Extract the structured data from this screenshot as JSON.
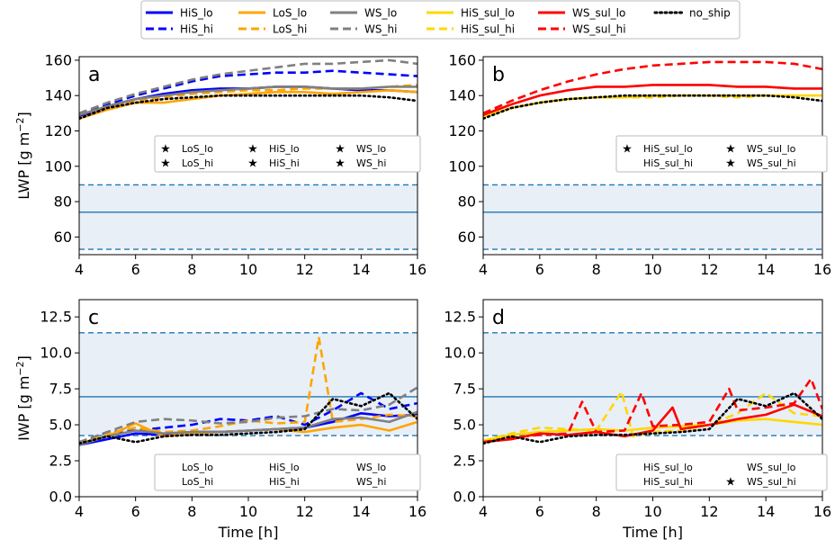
{
  "legend": {
    "entries": [
      {
        "label": "HiS_lo",
        "color": "#0000ff",
        "dash": "solid"
      },
      {
        "label": "HiS_hi",
        "color": "#0000ff",
        "dash": "dashed"
      },
      {
        "label": "LoS_lo",
        "color": "#ffa500",
        "dash": "solid"
      },
      {
        "label": "LoS_hi",
        "color": "#ffa500",
        "dash": "dashed"
      },
      {
        "label": "WS_lo",
        "color": "#808080",
        "dash": "solid"
      },
      {
        "label": "WS_hi",
        "color": "#808080",
        "dash": "dashed"
      },
      {
        "label": "HiS_sul_lo",
        "color": "#ffd700",
        "dash": "solid"
      },
      {
        "label": "HiS_sul_hi",
        "color": "#ffd700",
        "dash": "dashed"
      },
      {
        "label": "WS_sul_lo",
        "color": "#ff0000",
        "dash": "solid"
      },
      {
        "label": "WS_sul_hi",
        "color": "#ff0000",
        "dash": "dashed"
      },
      {
        "label": "no_ship",
        "color": "#000000",
        "dash": "dotted"
      }
    ]
  },
  "reference_color": "#1f77b4",
  "shade_color": "#e8eff7",
  "chart_data": [
    {
      "panel": "a",
      "type": "line",
      "xlabel": "",
      "ylabel": "LWP [g m$^{-2}$]",
      "xlim": [
        4,
        16
      ],
      "ylim": [
        50,
        162
      ],
      "xticks": [
        "4",
        "6",
        "8",
        "10",
        "12",
        "14",
        "16"
      ],
      "yticks": [
        "60",
        "80",
        "100",
        "120",
        "140",
        "160"
      ],
      "ytick_values": [
        60,
        80,
        100,
        120,
        140,
        160
      ],
      "band": {
        "mean": 74,
        "lower": 53,
        "upper": 89.5
      },
      "series": [
        {
          "name": "HiS_lo",
          "x": [
            4,
            5,
            6,
            7,
            8,
            9,
            10,
            11,
            12,
            13,
            14,
            15,
            16
          ],
          "y": [
            128,
            134,
            138,
            141,
            143,
            144,
            144,
            145,
            145,
            144,
            143,
            143,
            142
          ]
        },
        {
          "name": "HiS_hi",
          "x": [
            4,
            5,
            6,
            7,
            8,
            9,
            10,
            11,
            12,
            13,
            14,
            15,
            16
          ],
          "y": [
            129,
            135,
            140,
            144,
            148,
            151,
            152,
            153,
            153,
            154,
            153,
            152,
            151
          ]
        },
        {
          "name": "LoS_lo",
          "x": [
            4,
            5,
            6,
            7,
            8,
            9,
            10,
            11,
            12,
            13,
            14,
            15,
            16
          ],
          "y": [
            127,
            132,
            136,
            136,
            138,
            140,
            141,
            142,
            142,
            141,
            142,
            143,
            142
          ]
        },
        {
          "name": "LoS_hi",
          "x": [
            4,
            5,
            6,
            7,
            8,
            9,
            10,
            11,
            12,
            13,
            14,
            15,
            16
          ],
          "y": [
            127,
            133,
            137,
            139,
            141,
            142,
            143,
            143,
            144,
            144,
            144,
            145,
            146
          ]
        },
        {
          "name": "WS_lo",
          "x": [
            4,
            5,
            6,
            7,
            8,
            9,
            10,
            11,
            12,
            13,
            14,
            15,
            16
          ],
          "y": [
            129,
            134,
            138,
            140,
            142,
            143,
            144,
            145,
            145,
            144,
            144,
            145,
            145
          ]
        },
        {
          "name": "WS_hi",
          "x": [
            4,
            5,
            6,
            7,
            8,
            9,
            10,
            11,
            12,
            13,
            14,
            15,
            16
          ],
          "y": [
            130,
            136,
            141,
            145,
            149,
            152,
            154,
            156,
            158,
            158,
            159,
            160,
            158
          ]
        },
        {
          "name": "no_ship",
          "x": [
            4,
            5,
            6,
            7,
            8,
            9,
            10,
            11,
            12,
            13,
            14,
            15,
            16
          ],
          "y": [
            127,
            133,
            136,
            138,
            139,
            140,
            140,
            140,
            140,
            140,
            140,
            139,
            137
          ]
        }
      ],
      "marker_legend": [
        {
          "label": "LoS_lo",
          "marker": true
        },
        {
          "label": "HiS_lo",
          "marker": true
        },
        {
          "label": "WS_lo",
          "marker": true
        },
        {
          "label": "LoS_hi",
          "marker": true
        },
        {
          "label": "HiS_hi",
          "marker": true
        },
        {
          "label": "WS_hi",
          "marker": true
        }
      ]
    },
    {
      "panel": "b",
      "type": "line",
      "xlabel": "",
      "ylabel": "",
      "xlim": [
        4,
        16
      ],
      "ylim": [
        50,
        162
      ],
      "xticks": [
        "4",
        "6",
        "8",
        "10",
        "12",
        "14",
        "16"
      ],
      "yticks": [
        "60",
        "80",
        "100",
        "120",
        "140",
        "160"
      ],
      "ytick_values": [
        60,
        80,
        100,
        120,
        140,
        160
      ],
      "band": {
        "mean": 74,
        "lower": 53,
        "upper": 89.5
      },
      "series": [
        {
          "name": "HiS_sul_lo",
          "x": [
            4,
            5,
            6,
            7,
            8,
            9,
            10,
            11,
            12,
            13,
            14,
            15,
            16
          ],
          "y": [
            128,
            133,
            136,
            138,
            139,
            139,
            140,
            140,
            140,
            140,
            140,
            140,
            140
          ]
        },
        {
          "name": "HiS_sul_hi",
          "x": [
            4,
            5,
            6,
            7,
            8,
            9,
            10,
            11,
            12,
            13,
            14,
            15,
            16
          ],
          "y": [
            128,
            133,
            136,
            138,
            139,
            139,
            139,
            140,
            140,
            139,
            140,
            140,
            140
          ]
        },
        {
          "name": "WS_sul_lo",
          "x": [
            4,
            5,
            6,
            7,
            8,
            9,
            10,
            11,
            12,
            13,
            14,
            15,
            16
          ],
          "y": [
            129,
            135,
            140,
            143,
            145,
            145,
            146,
            146,
            146,
            145,
            145,
            144,
            144
          ]
        },
        {
          "name": "WS_sul_hi",
          "x": [
            4,
            5,
            6,
            7,
            8,
            9,
            10,
            11,
            12,
            13,
            14,
            15,
            16
          ],
          "y": [
            130,
            137,
            143,
            148,
            152,
            155,
            157,
            158,
            159,
            159,
            159,
            158,
            155
          ]
        },
        {
          "name": "no_ship",
          "x": [
            4,
            5,
            6,
            7,
            8,
            9,
            10,
            11,
            12,
            13,
            14,
            15,
            16
          ],
          "y": [
            127,
            133,
            136,
            138,
            139,
            140,
            140,
            140,
            140,
            140,
            140,
            139,
            137
          ]
        }
      ],
      "marker_legend": [
        {
          "label": "HiS_sul_lo",
          "marker": true
        },
        {
          "label": "WS_sul_lo",
          "marker": true
        },
        {
          "label": "HiS_sul_hi",
          "marker": false
        },
        {
          "label": "WS_sul_hi",
          "marker": true
        }
      ]
    },
    {
      "panel": "c",
      "type": "line",
      "xlabel": "Time [h]",
      "ylabel": "IWP [g m$^{-2}$]",
      "xlim": [
        4,
        16
      ],
      "ylim": [
        0,
        13.7
      ],
      "xticks": [
        "4",
        "6",
        "8",
        "10",
        "12",
        "14",
        "16"
      ],
      "yticks": [
        "0.0",
        "2.5",
        "5.0",
        "7.5",
        "10.0",
        "12.5"
      ],
      "ytick_values": [
        0,
        2.5,
        5,
        7.5,
        10,
        12.5
      ],
      "band": {
        "mean": 6.95,
        "lower": 4.25,
        "upper": 11.4
      },
      "series": [
        {
          "name": "HiS_lo",
          "x": [
            4,
            5,
            6,
            7,
            8,
            9,
            10,
            11,
            12,
            13,
            14,
            15,
            16
          ],
          "y": [
            3.6,
            4.0,
            4.4,
            4.3,
            4.5,
            4.5,
            4.6,
            4.7,
            4.8,
            5.2,
            5.8,
            5.6,
            5.7
          ]
        },
        {
          "name": "HiS_hi",
          "x": [
            4,
            5,
            6,
            7,
            8,
            9,
            10,
            11,
            12,
            13,
            14,
            15,
            16
          ],
          "y": [
            3.7,
            4.5,
            4.6,
            4.8,
            5.0,
            5.4,
            5.3,
            5.6,
            5.0,
            6.0,
            7.2,
            6.1,
            6.5
          ]
        },
        {
          "name": "LoS_lo",
          "x": [
            4,
            5,
            6,
            7,
            8,
            9,
            10,
            11,
            12,
            13,
            14,
            15,
            16
          ],
          "y": [
            3.7,
            4.2,
            5.1,
            4.2,
            4.4,
            4.5,
            4.6,
            4.7,
            4.5,
            4.8,
            5.0,
            4.6,
            5.2
          ]
        },
        {
          "name": "LoS_hi",
          "x": [
            4,
            5,
            6,
            7,
            8,
            9,
            10,
            11,
            12,
            12.5,
            13,
            14,
            15,
            16
          ],
          "y": [
            3.8,
            4.4,
            4.8,
            4.5,
            4.6,
            4.9,
            5.3,
            5.1,
            5.2,
            11.1,
            5.2,
            5.4,
            5.7,
            5.6
          ]
        },
        {
          "name": "WS_lo",
          "x": [
            4,
            5,
            6,
            7,
            8,
            9,
            10,
            11,
            12,
            13,
            14,
            15,
            16
          ],
          "y": [
            3.6,
            4.2,
            4.6,
            4.4,
            4.5,
            4.5,
            4.6,
            4.7,
            4.8,
            5.4,
            5.5,
            5.2,
            5.9
          ]
        },
        {
          "name": "WS_hi",
          "x": [
            4,
            5,
            6,
            7,
            8,
            9,
            10,
            11,
            12,
            13,
            14,
            15,
            16
          ],
          "y": [
            3.8,
            4.5,
            5.2,
            5.4,
            5.3,
            5.1,
            5.2,
            5.5,
            5.6,
            6.1,
            6.0,
            6.4,
            7.6
          ]
        },
        {
          "name": "no_ship",
          "x": [
            4,
            5,
            6,
            7,
            8,
            9,
            10,
            11,
            12,
            13,
            14,
            15,
            16
          ],
          "y": [
            3.7,
            4.2,
            3.8,
            4.2,
            4.3,
            4.3,
            4.4,
            4.5,
            4.7,
            6.8,
            6.3,
            7.2,
            5.4
          ]
        }
      ],
      "marker_legend": [
        {
          "label": "LoS_lo",
          "marker": false
        },
        {
          "label": "HiS_lo",
          "marker": false
        },
        {
          "label": "WS_lo",
          "marker": false
        },
        {
          "label": "LoS_hi",
          "marker": false
        },
        {
          "label": "HiS_hi",
          "marker": false
        },
        {
          "label": "WS_hi",
          "marker": false
        }
      ]
    },
    {
      "panel": "d",
      "type": "line",
      "xlabel": "Time [h]",
      "ylabel": "",
      "xlim": [
        4,
        16
      ],
      "ylim": [
        0,
        13.7
      ],
      "xticks": [
        "4",
        "6",
        "8",
        "10",
        "12",
        "14",
        "16"
      ],
      "yticks": [
        "0.0",
        "2.5",
        "5.0",
        "7.5",
        "10.0",
        "12.5"
      ],
      "ytick_values": [
        0,
        2.5,
        5,
        7.5,
        10,
        12.5
      ],
      "band": {
        "mean": 6.95,
        "lower": 4.25,
        "upper": 11.4
      },
      "series": [
        {
          "name": "HiS_sul_lo",
          "x": [
            4,
            5,
            6,
            7,
            8,
            9,
            10,
            11,
            12,
            13,
            14,
            15,
            16
          ],
          "y": [
            3.9,
            4.3,
            4.5,
            4.6,
            4.7,
            4.6,
            4.8,
            4.9,
            5.0,
            5.3,
            5.4,
            5.2,
            5.0
          ]
        },
        {
          "name": "HiS_sul_hi",
          "x": [
            4,
            5,
            6,
            7,
            8,
            8.9,
            9.3,
            10,
            11,
            12,
            13,
            14,
            15,
            16
          ],
          "y": [
            3.9,
            4.4,
            4.8,
            4.7,
            4.6,
            7.3,
            4.2,
            4.5,
            4.6,
            5.0,
            5.8,
            7.2,
            5.8,
            5.6
          ]
        },
        {
          "name": "WS_sul_lo",
          "x": [
            4,
            5,
            6,
            7,
            8,
            9,
            10,
            10.7,
            11,
            12,
            13,
            14,
            15,
            16
          ],
          "y": [
            3.8,
            4.0,
            4.4,
            4.3,
            4.5,
            4.2,
            4.6,
            6.2,
            4.7,
            5.0,
            5.4,
            5.7,
            6.4,
            5.6
          ]
        },
        {
          "name": "WS_sul_hi",
          "x": [
            4,
            5,
            6,
            7,
            7.5,
            8,
            9,
            9.6,
            10,
            11,
            12,
            12.7,
            13,
            14,
            15,
            15.6,
            16
          ],
          "y": [
            3.8,
            4.1,
            4.3,
            4.4,
            6.6,
            4.5,
            4.6,
            7.2,
            4.9,
            5.0,
            5.2,
            7.5,
            6.0,
            6.2,
            6.5,
            8.2,
            6.1
          ]
        },
        {
          "name": "no_ship",
          "x": [
            4,
            5,
            6,
            7,
            8,
            9,
            10,
            11,
            12,
            13,
            14,
            15,
            16
          ],
          "y": [
            3.7,
            4.2,
            3.8,
            4.2,
            4.3,
            4.3,
            4.4,
            4.5,
            4.7,
            6.8,
            6.3,
            7.2,
            5.4
          ]
        }
      ],
      "marker_legend": [
        {
          "label": "HiS_sul_lo",
          "marker": false
        },
        {
          "label": "WS_sul_lo",
          "marker": false
        },
        {
          "label": "HiS_sul_hi",
          "marker": false
        },
        {
          "label": "WS_sul_hi",
          "marker": true
        }
      ]
    }
  ]
}
